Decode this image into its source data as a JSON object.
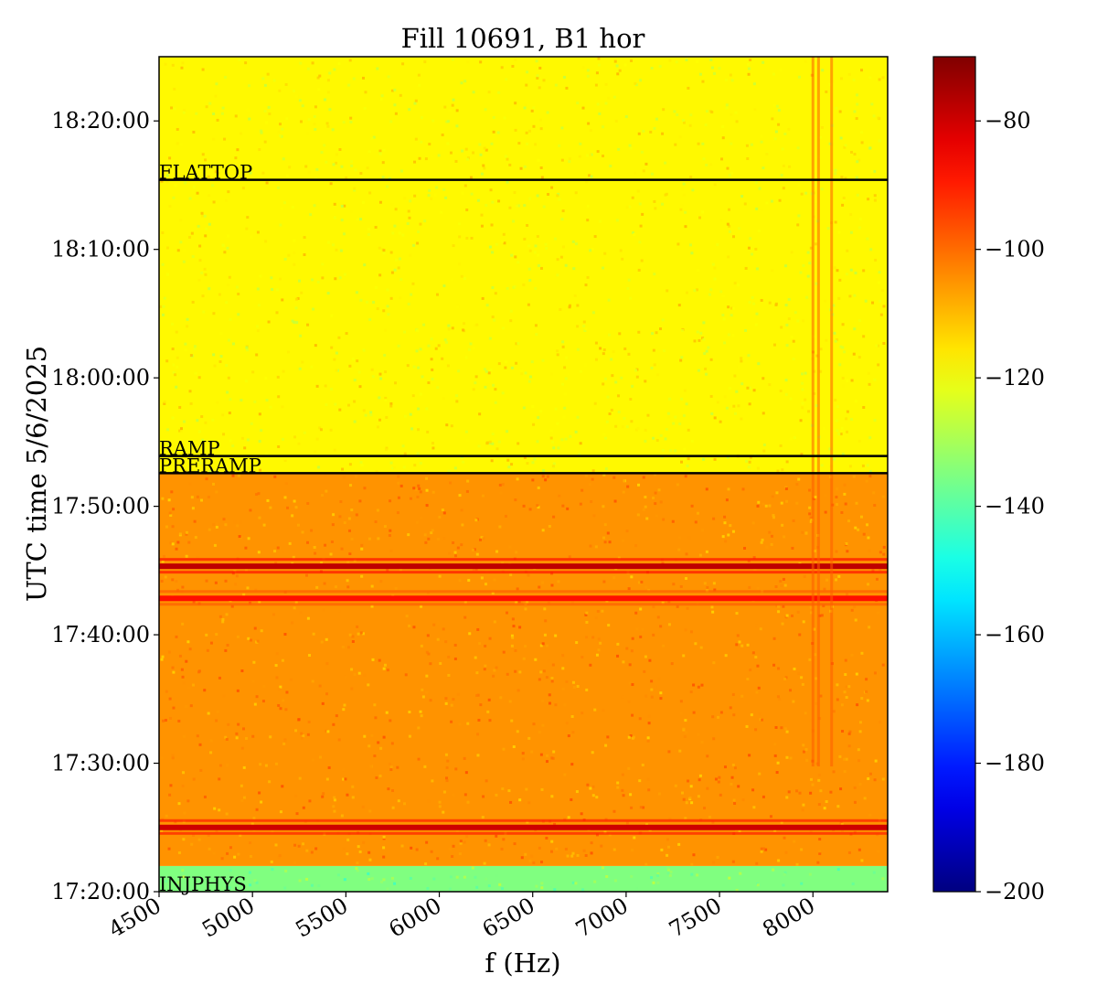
{
  "chart_data": {
    "type": "heatmap",
    "title": "Fill 10691, B1 hor",
    "xlabel": "f (Hz)",
    "ylabel": "UTC time 5/6/2025",
    "xlim": [
      4500,
      8400
    ],
    "ylim": [
      "17:20:00",
      "18:25:00"
    ],
    "x_ticks": [
      "4500",
      "5000",
      "5500",
      "6000",
      "6500",
      "7000",
      "7500",
      "8000"
    ],
    "y_ticks": [
      "17:20:00",
      "17:30:00",
      "17:40:00",
      "17:50:00",
      "18:00:00",
      "18:10:00",
      "18:20:00"
    ],
    "colormap": "jet",
    "colorbar": {
      "vmin": -200,
      "vmax": -70,
      "ticks": [
        "−80",
        "−100",
        "−120",
        "−140",
        "−160",
        "−180",
        "−200"
      ]
    },
    "events": [
      {
        "label": "FLATTOP",
        "time": "18:15:25"
      },
      {
        "label": "RAMP",
        "time": "17:53:55"
      },
      {
        "label": "PRERAMP",
        "time": "17:52:35"
      },
      {
        "label": "INJPHYS",
        "time": "17:20:00"
      }
    ],
    "regions": [
      {
        "from": "17:20:00",
        "to": "17:22:00",
        "level_db": -135
      },
      {
        "from": "17:22:00",
        "to": "17:52:35",
        "level_db": -105
      },
      {
        "from": "17:52:35",
        "to": "18:25:00",
        "level_db": -118
      }
    ],
    "strong_bands": [
      {
        "time": "17:25:00",
        "level_db": -80
      },
      {
        "time": "17:42:50",
        "level_db": -88
      },
      {
        "time": "17:45:20",
        "level_db": -78
      }
    ],
    "spectral_lines_hz": [
      8000,
      8030,
      8100
    ],
    "colors": {
      "event_line": "#000000"
    }
  }
}
